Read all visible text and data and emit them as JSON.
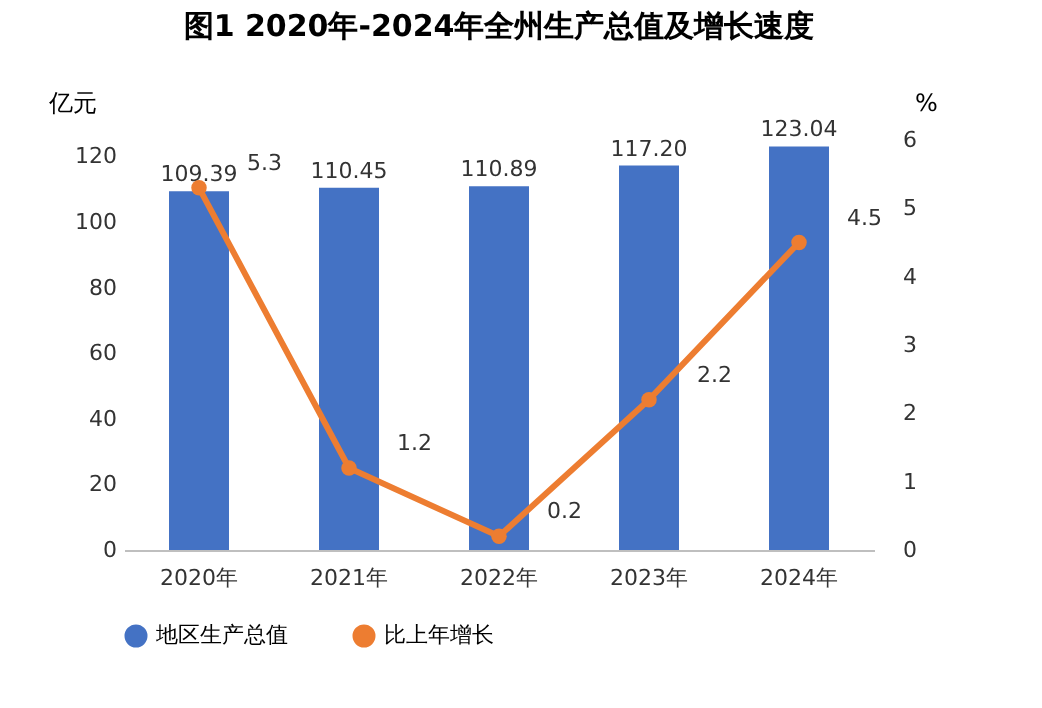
{
  "chart_data": {
    "type": "bar",
    "title": "图1  2020年-2024年全州生产总值及增长速度",
    "ylabel": "亿元",
    "y2label": "%",
    "categories": [
      "2020年",
      "2021年",
      "2022年",
      "2023年",
      "2024年"
    ],
    "series": [
      {
        "name": "地区生产总值",
        "color": "#4472c4",
        "values": [
          109.39,
          110.45,
          110.89,
          117.2,
          123.04
        ],
        "value_labels": [
          "109.39",
          "110.45",
          "110.89",
          "117.20",
          "123.04"
        ]
      },
      {
        "name": "比上年增长",
        "type": "line",
        "axis": "y2",
        "color": "#ed7d31",
        "values": [
          5.3,
          1.2,
          0.2,
          2.2,
          4.5
        ],
        "value_labels": [
          "5.3",
          "1.2",
          "0.2",
          "2.2",
          "4.5"
        ]
      }
    ],
    "ylim": [
      0,
      125
    ],
    "yticks": [
      0,
      20,
      40,
      60,
      80,
      100,
      120
    ],
    "y2lim": [
      0,
      6
    ],
    "y2ticks": [
      0,
      1,
      2,
      3,
      4,
      5,
      6
    ],
    "grid": false,
    "legend": "bottom",
    "marker": "circle",
    "line_style": "solid"
  }
}
